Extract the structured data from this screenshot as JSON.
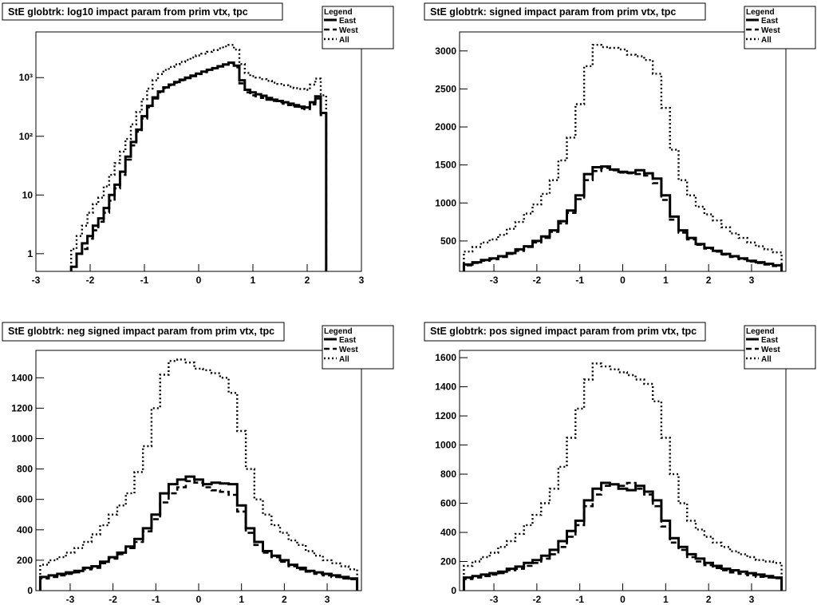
{
  "chart_data": [
    {
      "type": "line",
      "title": "StE globtrk: log10 impact param from prim vtx, tpc",
      "legend": {
        "title": "Legend",
        "placement": "top-right",
        "entries": [
          "East",
          "West",
          "All"
        ]
      },
      "xlabel": "",
      "ylabel": "",
      "xlim": [
        -3,
        3
      ],
      "ylim": [
        0.5,
        6000
      ],
      "yscale": "log",
      "grid": false,
      "x_ticks": [
        "-3",
        "-2",
        "-1",
        "0",
        "1",
        "2",
        "3"
      ],
      "y_ticks": [
        {
          "value": 1,
          "label": "1"
        },
        {
          "value": 10,
          "label": "10"
        },
        {
          "value": 100,
          "label": "10²"
        },
        {
          "value": 1000,
          "label": "10³"
        }
      ],
      "x": [
        -2.3,
        -2.2,
        -2.1,
        -2.0,
        -1.9,
        -1.8,
        -1.7,
        -1.6,
        -1.5,
        -1.4,
        -1.3,
        -1.2,
        -1.1,
        -1.0,
        -0.9,
        -0.8,
        -0.7,
        -0.6,
        -0.5,
        -0.4,
        -0.3,
        -0.2,
        -0.1,
        0.0,
        0.1,
        0.2,
        0.3,
        0.4,
        0.5,
        0.6,
        0.7,
        0.8,
        0.9,
        1.0,
        1.1,
        1.2,
        1.3,
        1.4,
        1.5,
        1.6,
        1.7,
        1.8,
        1.9,
        2.0,
        2.1,
        2.2,
        2.3
      ],
      "series": [
        {
          "name": "East",
          "style": "solid",
          "values": [
            0.6,
            1,
            1.5,
            2,
            3,
            4,
            6,
            10,
            15,
            25,
            45,
            80,
            130,
            220,
            330,
            460,
            580,
            680,
            760,
            840,
            920,
            1000,
            1080,
            1170,
            1260,
            1360,
            1450,
            1560,
            1680,
            1800,
            1600,
            900,
            620,
            560,
            520,
            490,
            450,
            420,
            400,
            380,
            360,
            340,
            320,
            310,
            380,
            480,
            250
          ]
        },
        {
          "name": "West",
          "style": "dashed",
          "values": [
            0.6,
            1,
            1.2,
            1.8,
            2.5,
            3.5,
            5,
            8,
            13,
            22,
            40,
            70,
            120,
            200,
            310,
            440,
            560,
            660,
            740,
            820,
            900,
            980,
            1060,
            1150,
            1240,
            1340,
            1430,
            1540,
            1660,
            1760,
            1500,
            800,
            560,
            500,
            480,
            450,
            420,
            400,
            380,
            360,
            340,
            320,
            300,
            290,
            350,
            440,
            230
          ]
        },
        {
          "name": "All",
          "style": "dotted",
          "values": [
            1.2,
            2,
            3,
            5,
            7,
            9,
            14,
            22,
            35,
            55,
            90,
            160,
            260,
            430,
            650,
            900,
            1150,
            1350,
            1520,
            1680,
            1850,
            2000,
            2200,
            2380,
            2550,
            2750,
            2950,
            3150,
            3400,
            3600,
            3000,
            1700,
            1200,
            1060,
            1000,
            940,
            880,
            820,
            780,
            740,
            700,
            660,
            640,
            620,
            760,
            960,
            500
          ]
        }
      ]
    },
    {
      "type": "line",
      "title": "StE globtrk: signed impact param from prim vtx, tpc",
      "legend": {
        "title": "Legend",
        "placement": "top-right",
        "entries": [
          "East",
          "West",
          "All"
        ]
      },
      "xlabel": "",
      "ylabel": "",
      "xlim": [
        -3.8,
        3.8
      ],
      "ylim": [
        100,
        3250
      ],
      "grid": false,
      "x_ticks": [
        "-3",
        "-2",
        "-1",
        "0",
        "1",
        "2",
        "3"
      ],
      "y_ticks": [
        500,
        1000,
        1500,
        2000,
        2500,
        3000
      ],
      "x": [
        -3.6,
        -3.4,
        -3.2,
        -3.0,
        -2.8,
        -2.6,
        -2.4,
        -2.2,
        -2.0,
        -1.8,
        -1.6,
        -1.4,
        -1.2,
        -1.0,
        -0.8,
        -0.6,
        -0.4,
        -0.2,
        0.0,
        0.2,
        0.4,
        0.6,
        0.8,
        1.0,
        1.2,
        1.4,
        1.6,
        1.8,
        2.0,
        2.2,
        2.4,
        2.6,
        2.8,
        3.0,
        3.2,
        3.4,
        3.6
      ],
      "series": [
        {
          "name": "East",
          "style": "solid",
          "values": [
            190,
            220,
            250,
            270,
            300,
            340,
            390,
            430,
            500,
            560,
            640,
            760,
            900,
            1100,
            1380,
            1470,
            1480,
            1440,
            1410,
            1400,
            1430,
            1390,
            1320,
            1100,
            820,
            640,
            540,
            460,
            410,
            370,
            330,
            300,
            270,
            240,
            220,
            200,
            180
          ]
        },
        {
          "name": "West",
          "style": "dashed",
          "values": [
            180,
            210,
            240,
            260,
            290,
            330,
            370,
            420,
            480,
            540,
            620,
            730,
            870,
            1050,
            1300,
            1420,
            1460,
            1430,
            1400,
            1390,
            1380,
            1360,
            1260,
            1040,
            780,
            610,
            520,
            450,
            400,
            360,
            320,
            290,
            260,
            230,
            210,
            190,
            170
          ]
        },
        {
          "name": "All",
          "style": "dotted",
          "values": [
            360,
            420,
            480,
            520,
            580,
            660,
            750,
            860,
            980,
            1120,
            1300,
            1560,
            1860,
            2300,
            2800,
            3080,
            3050,
            3040,
            3020,
            2950,
            2930,
            2880,
            2700,
            2250,
            1700,
            1300,
            1100,
            950,
            850,
            770,
            680,
            600,
            540,
            480,
            430,
            390,
            350
          ]
        }
      ]
    },
    {
      "type": "line",
      "title": "StE globtrk: neg signed impact param from prim vtx, tpc",
      "legend": {
        "title": "Legend",
        "placement": "top-right",
        "entries": [
          "East",
          "West",
          "All"
        ]
      },
      "xlabel": "",
      "ylabel": "",
      "xlim": [
        -3.8,
        3.8
      ],
      "ylim": [
        0,
        1580
      ],
      "grid": false,
      "x_ticks": [
        "-3",
        "-2",
        "-1",
        "0",
        "1",
        "2",
        "3"
      ],
      "y_ticks": [
        0,
        200,
        400,
        600,
        800,
        1000,
        1200,
        1400
      ],
      "x": [
        -3.6,
        -3.4,
        -3.2,
        -3.0,
        -2.8,
        -2.6,
        -2.4,
        -2.2,
        -2.0,
        -1.8,
        -1.6,
        -1.4,
        -1.2,
        -1.0,
        -0.8,
        -0.6,
        -0.4,
        -0.2,
        0.0,
        0.2,
        0.4,
        0.6,
        0.8,
        1.0,
        1.2,
        1.4,
        1.6,
        1.8,
        2.0,
        2.2,
        2.4,
        2.6,
        2.8,
        3.0,
        3.2,
        3.4,
        3.6
      ],
      "series": [
        {
          "name": "East",
          "style": "solid",
          "values": [
            90,
            100,
            110,
            120,
            130,
            150,
            160,
            190,
            220,
            250,
            290,
            340,
            410,
            500,
            640,
            700,
            730,
            750,
            730,
            700,
            710,
            705,
            700,
            560,
            410,
            320,
            260,
            230,
            200,
            170,
            150,
            130,
            120,
            110,
            100,
            90,
            80
          ]
        },
        {
          "name": "West",
          "style": "dashed",
          "values": [
            80,
            90,
            100,
            110,
            120,
            140,
            150,
            180,
            210,
            240,
            280,
            320,
            390,
            470,
            580,
            640,
            680,
            720,
            710,
            680,
            660,
            650,
            630,
            520,
            380,
            300,
            250,
            220,
            190,
            160,
            140,
            125,
            110,
            100,
            90,
            80,
            75
          ]
        },
        {
          "name": "All",
          "style": "dotted",
          "values": [
            170,
            200,
            220,
            250,
            280,
            320,
            370,
            430,
            500,
            560,
            640,
            780,
            950,
            1200,
            1420,
            1510,
            1520,
            1500,
            1460,
            1450,
            1430,
            1400,
            1300,
            1050,
            800,
            600,
            500,
            430,
            380,
            330,
            300,
            260,
            230,
            200,
            180,
            160,
            140
          ]
        }
      ]
    },
    {
      "type": "line",
      "title": "StE globtrk: pos signed impact param from prim vtx, tpc",
      "legend": {
        "title": "Legend",
        "placement": "top-right",
        "entries": [
          "East",
          "West",
          "All"
        ]
      },
      "xlabel": "",
      "ylabel": "",
      "xlim": [
        -3.8,
        3.8
      ],
      "ylim": [
        0,
        1650
      ],
      "grid": false,
      "x_ticks": [
        "-3",
        "-2",
        "-1",
        "0",
        "1",
        "2",
        "3"
      ],
      "y_ticks": [
        0,
        200,
        400,
        600,
        800,
        1000,
        1200,
        1400,
        1600
      ],
      "x": [
        -3.6,
        -3.4,
        -3.2,
        -3.0,
        -2.8,
        -2.6,
        -2.4,
        -2.2,
        -2.0,
        -1.8,
        -1.6,
        -1.4,
        -1.2,
        -1.0,
        -0.8,
        -0.6,
        -0.4,
        -0.2,
        0.0,
        0.2,
        0.4,
        0.6,
        0.8,
        1.0,
        1.2,
        1.4,
        1.6,
        1.8,
        2.0,
        2.2,
        2.4,
        2.6,
        2.8,
        3.0,
        3.2,
        3.4,
        3.6
      ],
      "series": [
        {
          "name": "East",
          "style": "solid",
          "values": [
            90,
            100,
            110,
            120,
            130,
            150,
            165,
            190,
            210,
            240,
            280,
            340,
            410,
            480,
            620,
            700,
            740,
            730,
            700,
            690,
            720,
            680,
            620,
            480,
            360,
            300,
            250,
            220,
            190,
            170,
            150,
            140,
            130,
            120,
            110,
            100,
            90
          ]
        },
        {
          "name": "West",
          "style": "dashed",
          "values": [
            80,
            90,
            100,
            110,
            120,
            140,
            150,
            170,
            190,
            220,
            250,
            300,
            370,
            450,
            580,
            660,
            720,
            730,
            720,
            740,
            700,
            660,
            580,
            440,
            330,
            280,
            230,
            200,
            175,
            155,
            140,
            125,
            115,
            105,
            95,
            90,
            85
          ]
        },
        {
          "name": "All",
          "style": "dotted",
          "values": [
            170,
            200,
            230,
            260,
            300,
            340,
            390,
            450,
            520,
            600,
            700,
            850,
            1050,
            1250,
            1450,
            1560,
            1540,
            1520,
            1500,
            1480,
            1450,
            1420,
            1300,
            1050,
            800,
            600,
            480,
            420,
            370,
            330,
            300,
            270,
            250,
            230,
            210,
            200,
            190
          ]
        }
      ]
    }
  ]
}
